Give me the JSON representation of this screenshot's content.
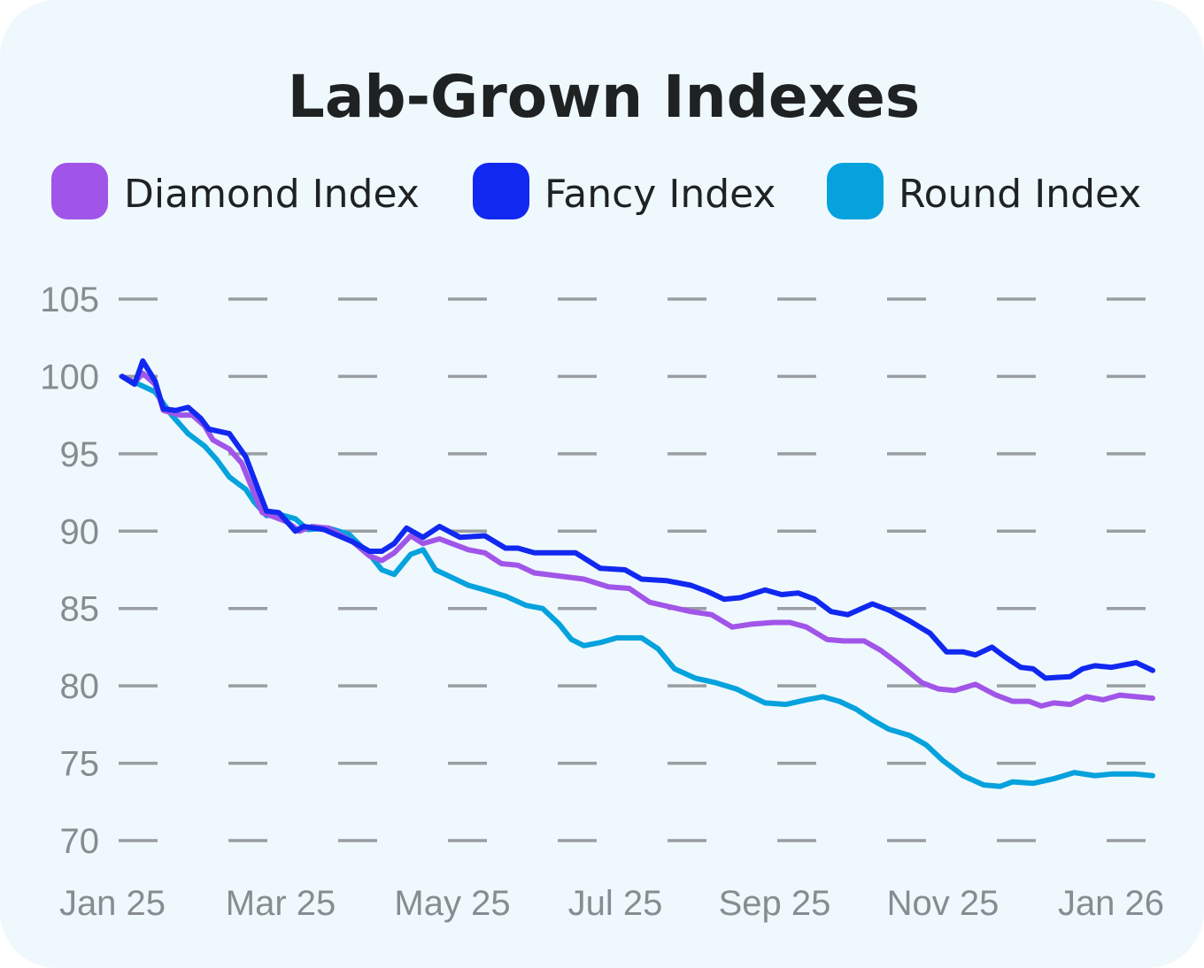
{
  "chart_data": {
    "type": "line",
    "title": "Lab-Grown Indexes",
    "xlabel": "",
    "ylabel": "",
    "ylim": [
      70,
      105
    ],
    "yticks": [
      "105",
      "100",
      "95",
      "90",
      "85",
      "80",
      "75",
      "70"
    ],
    "xticks": [
      "Jan 25",
      "Mar 25",
      "May 25",
      "Jul 25",
      "Sep 25",
      "Nov 25",
      "Jan 26"
    ],
    "xrange_months": [
      0,
      12.5
    ],
    "legend_position": "top",
    "grid": "horizontal dashed",
    "series": [
      {
        "name": "Diamond Index",
        "color": "#a155e8",
        "points": [
          [
            0,
            100
          ],
          [
            0.15,
            99.6
          ],
          [
            0.25,
            100.2
          ],
          [
            0.4,
            99.5
          ],
          [
            0.5,
            97.8
          ],
          [
            0.7,
            97.5
          ],
          [
            0.85,
            97.5
          ],
          [
            1.0,
            96.8
          ],
          [
            1.1,
            95.9
          ],
          [
            1.3,
            95.3
          ],
          [
            1.45,
            94.4
          ],
          [
            1.7,
            91.2
          ],
          [
            1.85,
            90.9
          ],
          [
            2.0,
            90.6
          ],
          [
            2.15,
            90.0
          ],
          [
            2.3,
            90.3
          ],
          [
            2.5,
            90.2
          ],
          [
            2.8,
            89.3
          ],
          [
            3.0,
            88.4
          ],
          [
            3.15,
            88.1
          ],
          [
            3.3,
            88.6
          ],
          [
            3.5,
            89.7
          ],
          [
            3.65,
            89.2
          ],
          [
            3.85,
            89.5
          ],
          [
            4.0,
            89.2
          ],
          [
            4.2,
            88.8
          ],
          [
            4.4,
            88.6
          ],
          [
            4.6,
            87.9
          ],
          [
            4.8,
            87.8
          ],
          [
            5.0,
            87.3
          ],
          [
            5.3,
            87.1
          ],
          [
            5.6,
            86.9
          ],
          [
            5.9,
            86.4
          ],
          [
            6.15,
            86.3
          ],
          [
            6.4,
            85.4
          ],
          [
            6.65,
            85.1
          ],
          [
            6.9,
            84.8
          ],
          [
            7.15,
            84.6
          ],
          [
            7.4,
            83.8
          ],
          [
            7.65,
            84.0
          ],
          [
            7.9,
            84.1
          ],
          [
            8.1,
            84.1
          ],
          [
            8.3,
            83.8
          ],
          [
            8.55,
            83.0
          ],
          [
            8.75,
            82.9
          ],
          [
            9.0,
            82.9
          ],
          [
            9.2,
            82.3
          ],
          [
            9.45,
            81.3
          ],
          [
            9.7,
            80.2
          ],
          [
            9.9,
            79.8
          ],
          [
            10.1,
            79.7
          ],
          [
            10.35,
            80.1
          ],
          [
            10.6,
            79.4
          ],
          [
            10.8,
            79.0
          ],
          [
            11.0,
            79.0
          ],
          [
            11.15,
            78.7
          ],
          [
            11.3,
            78.9
          ],
          [
            11.5,
            78.8
          ],
          [
            11.7,
            79.3
          ],
          [
            11.9,
            79.1
          ],
          [
            12.1,
            79.4
          ],
          [
            12.3,
            79.3
          ],
          [
            12.5,
            79.2
          ]
        ]
      },
      {
        "name": "Fancy Index",
        "color": "#1128f0",
        "points": [
          [
            0,
            100
          ],
          [
            0.15,
            99.5
          ],
          [
            0.25,
            101.0
          ],
          [
            0.4,
            99.7
          ],
          [
            0.5,
            97.9
          ],
          [
            0.65,
            97.8
          ],
          [
            0.8,
            98.0
          ],
          [
            0.95,
            97.3
          ],
          [
            1.05,
            96.6
          ],
          [
            1.3,
            96.3
          ],
          [
            1.5,
            94.8
          ],
          [
            1.75,
            91.3
          ],
          [
            1.9,
            91.2
          ],
          [
            2.1,
            90.0
          ],
          [
            2.2,
            90.3
          ],
          [
            2.45,
            90.1
          ],
          [
            2.8,
            89.3
          ],
          [
            3.0,
            88.7
          ],
          [
            3.15,
            88.7
          ],
          [
            3.3,
            89.2
          ],
          [
            3.45,
            90.2
          ],
          [
            3.65,
            89.6
          ],
          [
            3.85,
            90.3
          ],
          [
            4.1,
            89.6
          ],
          [
            4.4,
            89.7
          ],
          [
            4.65,
            88.9
          ],
          [
            4.8,
            88.9
          ],
          [
            5.0,
            88.6
          ],
          [
            5.5,
            88.6
          ],
          [
            5.8,
            87.6
          ],
          [
            6.1,
            87.5
          ],
          [
            6.3,
            86.9
          ],
          [
            6.6,
            86.8
          ],
          [
            6.9,
            86.5
          ],
          [
            7.1,
            86.1
          ],
          [
            7.3,
            85.6
          ],
          [
            7.5,
            85.7
          ],
          [
            7.8,
            86.2
          ],
          [
            8.0,
            85.9
          ],
          [
            8.2,
            86.0
          ],
          [
            8.4,
            85.6
          ],
          [
            8.6,
            84.8
          ],
          [
            8.8,
            84.6
          ],
          [
            9.1,
            85.3
          ],
          [
            9.3,
            84.9
          ],
          [
            9.55,
            84.2
          ],
          [
            9.8,
            83.4
          ],
          [
            10.0,
            82.2
          ],
          [
            10.2,
            82.2
          ],
          [
            10.35,
            82.0
          ],
          [
            10.55,
            82.5
          ],
          [
            10.7,
            81.9
          ],
          [
            10.9,
            81.2
          ],
          [
            11.05,
            81.1
          ],
          [
            11.2,
            80.5
          ],
          [
            11.5,
            80.6
          ],
          [
            11.65,
            81.1
          ],
          [
            11.8,
            81.3
          ],
          [
            12.0,
            81.2
          ],
          [
            12.3,
            81.5
          ],
          [
            12.5,
            81.0
          ]
        ]
      },
      {
        "name": "Round Index",
        "color": "#05a2dd",
        "points": [
          [
            0,
            100
          ],
          [
            0.2,
            99.5
          ],
          [
            0.4,
            99.0
          ],
          [
            0.6,
            97.5
          ],
          [
            0.8,
            96.3
          ],
          [
            1.0,
            95.5
          ],
          [
            1.15,
            94.6
          ],
          [
            1.3,
            93.5
          ],
          [
            1.5,
            92.7
          ],
          [
            1.6,
            91.9
          ],
          [
            1.75,
            91.0
          ],
          [
            1.9,
            91.1
          ],
          [
            2.1,
            90.8
          ],
          [
            2.25,
            90.1
          ],
          [
            2.5,
            90.2
          ],
          [
            2.75,
            89.8
          ],
          [
            3.0,
            88.5
          ],
          [
            3.15,
            87.5
          ],
          [
            3.3,
            87.2
          ],
          [
            3.5,
            88.5
          ],
          [
            3.65,
            88.8
          ],
          [
            3.8,
            87.5
          ],
          [
            4.0,
            87.0
          ],
          [
            4.2,
            86.5
          ],
          [
            4.4,
            86.2
          ],
          [
            4.65,
            85.8
          ],
          [
            4.9,
            85.2
          ],
          [
            5.1,
            85.0
          ],
          [
            5.3,
            84.0
          ],
          [
            5.45,
            83.0
          ],
          [
            5.6,
            82.6
          ],
          [
            5.8,
            82.8
          ],
          [
            6.0,
            83.1
          ],
          [
            6.3,
            83.1
          ],
          [
            6.5,
            82.4
          ],
          [
            6.7,
            81.1
          ],
          [
            6.95,
            80.5
          ],
          [
            7.2,
            80.2
          ],
          [
            7.45,
            79.8
          ],
          [
            7.6,
            79.4
          ],
          [
            7.8,
            78.9
          ],
          [
            8.05,
            78.8
          ],
          [
            8.3,
            79.1
          ],
          [
            8.5,
            79.3
          ],
          [
            8.7,
            79.0
          ],
          [
            8.9,
            78.5
          ],
          [
            9.1,
            77.8
          ],
          [
            9.3,
            77.2
          ],
          [
            9.55,
            76.8
          ],
          [
            9.75,
            76.2
          ],
          [
            9.95,
            75.2
          ],
          [
            10.2,
            74.2
          ],
          [
            10.45,
            73.6
          ],
          [
            10.65,
            73.5
          ],
          [
            10.8,
            73.8
          ],
          [
            11.05,
            73.7
          ],
          [
            11.3,
            74.0
          ],
          [
            11.55,
            74.4
          ],
          [
            11.8,
            74.2
          ],
          [
            12.0,
            74.3
          ],
          [
            12.3,
            74.3
          ],
          [
            12.5,
            74.2
          ]
        ]
      }
    ]
  }
}
